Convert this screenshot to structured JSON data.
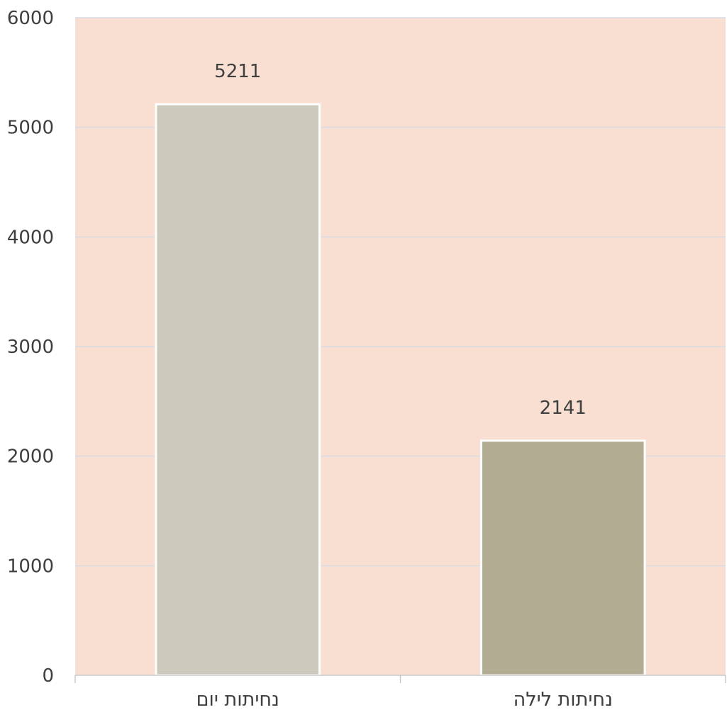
{
  "chart_data": {
    "type": "bar",
    "title": "",
    "xlabel": "",
    "ylabel": "",
    "categories": [
      "נחיתות יום",
      "נחיתות לילה"
    ],
    "values": [
      5211,
      2141
    ],
    "data_labels": [
      "5211",
      "2141"
    ],
    "ylim": [
      0,
      6000
    ],
    "yticks": [
      0,
      1000,
      2000,
      3000,
      4000,
      5000,
      6000
    ],
    "ytick_labels": [
      "0",
      "1000",
      "2000",
      "3000",
      "4000",
      "5000",
      "6000"
    ],
    "grid": true,
    "legend": "none",
    "colors": {
      "plot_background": "#f8dfd1",
      "gridline": "#d9dbe3",
      "axis": "#c8c8c8",
      "bar_outline": "#ffffff",
      "bars": [
        "#cdc9bc",
        "#b2ac93"
      ]
    }
  }
}
